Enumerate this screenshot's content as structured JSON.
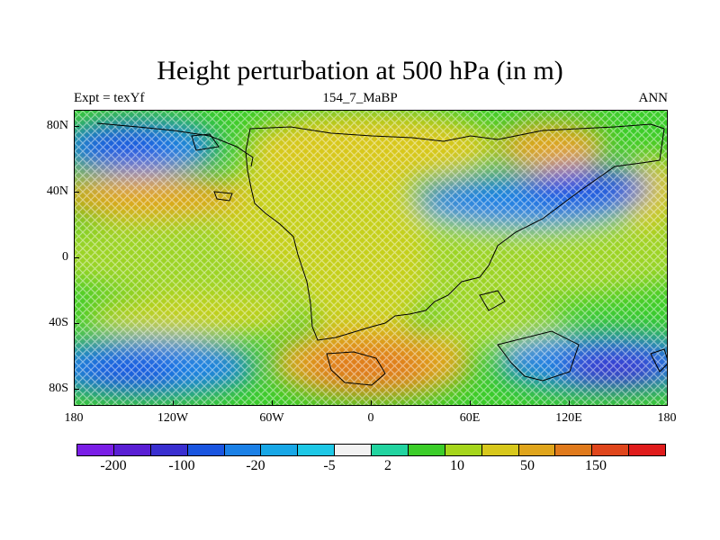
{
  "title": "Height perturbation at 500 hPa (in m)",
  "subtitle_left": "Expt = texYf",
  "subtitle_center": "154_7_MaBP",
  "subtitle_right": "ANN",
  "lat_labels": [
    "80N",
    "40N",
    "0",
    "40S",
    "80S"
  ],
  "lon_labels": [
    "180",
    "120W",
    "60W",
    "0",
    "60E",
    "120E",
    "180"
  ],
  "colorbar": {
    "colors": [
      "#7a1ee6",
      "#5a1fd4",
      "#3a2fd0",
      "#1a55e0",
      "#1b80e6",
      "#18a7e6",
      "#1ec8e6",
      "#f2f2f2",
      "#22d4a0",
      "#3ccd2a",
      "#a6d61c",
      "#d8c81c",
      "#e0a51c",
      "#e07a1c",
      "#e0461c",
      "#e01c1c"
    ],
    "labels": [
      "-200",
      "-100",
      "-20",
      "-5",
      "2",
      "10",
      "50",
      "150"
    ]
  }
}
